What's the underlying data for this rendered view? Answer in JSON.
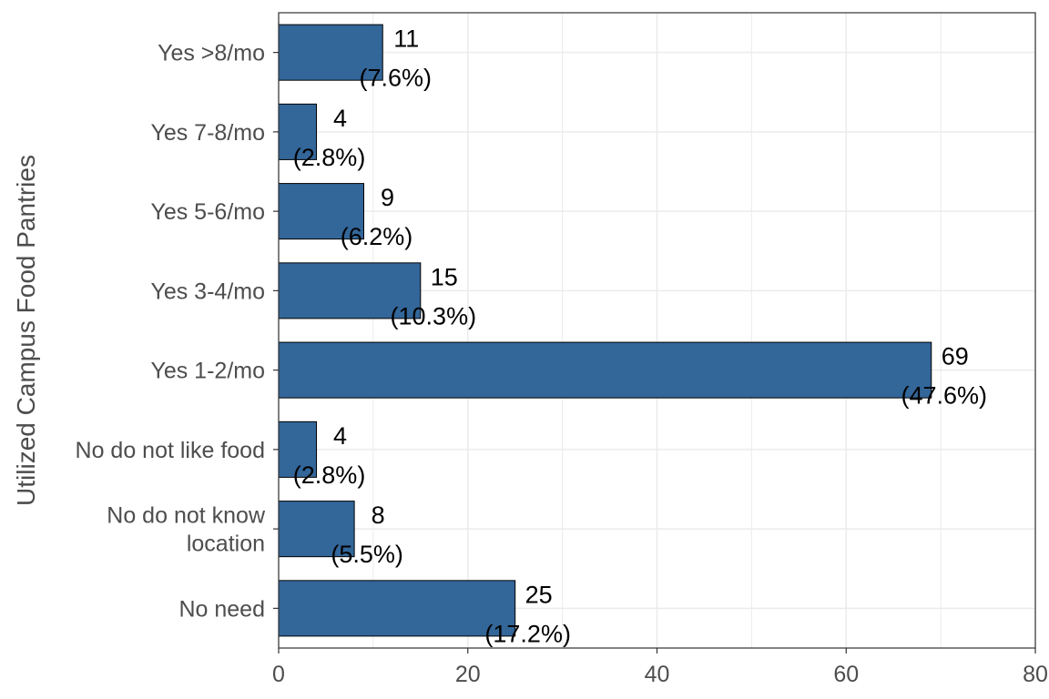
{
  "chart_data": {
    "type": "bar",
    "orientation": "horizontal",
    "title": "",
    "xlabel": "",
    "ylabel": "Utilized Campus Food Pantries",
    "categories": [
      "Yes >8/mo",
      "Yes 7-8/mo",
      "Yes 5-6/mo",
      "Yes 3-4/mo",
      "Yes 1-2/mo",
      "No do not like food",
      "No do not know location",
      "No need"
    ],
    "category_lines": [
      [
        "Yes >8/mo"
      ],
      [
        "Yes 7-8/mo"
      ],
      [
        "Yes 5-6/mo"
      ],
      [
        "Yes 3-4/mo"
      ],
      [
        "Yes 1-2/mo"
      ],
      [
        "No do not like food"
      ],
      [
        "No do not know",
        "location"
      ],
      [
        "No need"
      ]
    ],
    "values": [
      11,
      4,
      9,
      15,
      69,
      4,
      8,
      25
    ],
    "percent_labels": [
      "(7.6%)",
      "(2.8%)",
      "(6.2%)",
      "(10.3%)",
      "(47.6%)",
      "(2.8%)",
      "(5.5%)",
      "(17.2%)"
    ],
    "xlim": [
      0,
      80
    ],
    "x_ticks": [
      0,
      20,
      40,
      60,
      80
    ],
    "grid": true,
    "bar_color": "#336699",
    "bar_edge_color": "#000000"
  }
}
